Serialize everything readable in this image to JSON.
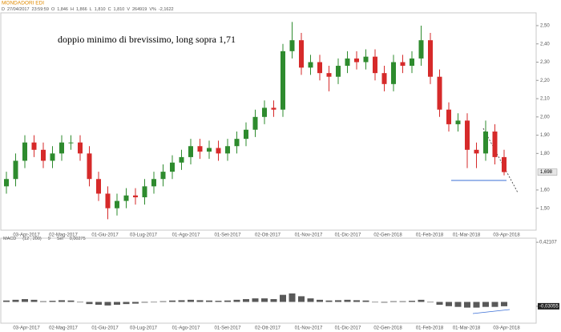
{
  "header": {
    "symbol": "MONDADORI EDI",
    "info": [
      "D",
      "27/04/2017",
      "23:59:59",
      "O",
      "1,846",
      "H",
      "1,866",
      "L",
      "1,810",
      "C",
      "1,810",
      "V",
      "264919",
      "V%",
      "-2,1622"
    ]
  },
  "chart_data": [
    {
      "type": "candlestick",
      "annotation": "doppio minimo di brevissimo, long sopra 1,71",
      "x_labels": [
        "03-Apr-2017",
        "02-Mag-2017",
        "01-Giu-2017",
        "03-Lug-2017",
        "01-Ago-2017",
        "01-Set-2017",
        "02-Ott-2017",
        "01-Nov-2017",
        "01-Dic-2017",
        "02-Gen-2018",
        "01-Feb-2018",
        "01-Mar-2018",
        "03-Apr-2018"
      ],
      "open": [
        1.62,
        1.66,
        1.76,
        1.86,
        1.82,
        1.76,
        1.8,
        1.86,
        1.86,
        1.8,
        1.66,
        1.58,
        1.5,
        1.54,
        1.57,
        1.56,
        1.62,
        1.66,
        1.7,
        1.75,
        1.78,
        1.84,
        1.81,
        1.83,
        1.8,
        1.84,
        1.88,
        1.93,
        2.0,
        2.05,
        2.04,
        2.36,
        2.42,
        2.27,
        2.3,
        2.24,
        2.22,
        2.28,
        2.32,
        2.3,
        2.33,
        2.24,
        2.18,
        2.3,
        2.28,
        2.32,
        2.42,
        2.22,
        2.04,
        1.96,
        1.98,
        1.82,
        1.8,
        1.92,
        1.78
      ],
      "high": [
        1.7,
        1.8,
        1.9,
        1.9,
        1.86,
        1.84,
        1.9,
        1.9,
        1.9,
        1.84,
        1.7,
        1.62,
        1.58,
        1.61,
        1.61,
        1.66,
        1.7,
        1.74,
        1.79,
        1.82,
        1.88,
        1.88,
        1.87,
        1.87,
        1.88,
        1.92,
        1.97,
        2.04,
        2.09,
        2.09,
        2.4,
        2.52,
        2.46,
        2.34,
        2.34,
        2.28,
        2.32,
        2.36,
        2.36,
        2.37,
        2.37,
        2.28,
        2.34,
        2.34,
        2.36,
        2.5,
        2.46,
        2.26,
        2.08,
        2.02,
        2.02,
        1.86,
        1.98,
        1.96,
        1.82
      ],
      "low": [
        1.58,
        1.62,
        1.72,
        1.78,
        1.72,
        1.72,
        1.76,
        1.82,
        1.76,
        1.62,
        1.54,
        1.44,
        1.46,
        1.5,
        1.52,
        1.52,
        1.58,
        1.62,
        1.66,
        1.71,
        1.74,
        1.77,
        1.77,
        1.76,
        1.76,
        1.8,
        1.84,
        1.89,
        1.96,
        2.0,
        2.0,
        2.32,
        2.23,
        2.23,
        2.2,
        2.14,
        2.18,
        2.24,
        2.26,
        2.26,
        2.2,
        2.14,
        2.14,
        2.24,
        2.24,
        2.28,
        2.18,
        2.0,
        1.92,
        1.92,
        1.72,
        1.72,
        1.76,
        1.74,
        1.68
      ],
      "close": [
        1.66,
        1.76,
        1.86,
        1.82,
        1.76,
        1.8,
        1.86,
        1.86,
        1.8,
        1.66,
        1.58,
        1.5,
        1.54,
        1.57,
        1.56,
        1.62,
        1.66,
        1.7,
        1.75,
        1.78,
        1.84,
        1.81,
        1.83,
        1.8,
        1.84,
        1.88,
        1.93,
        2.0,
        2.05,
        2.04,
        2.36,
        2.42,
        2.27,
        2.3,
        2.24,
        2.22,
        2.28,
        2.32,
        2.3,
        2.33,
        2.24,
        2.18,
        2.3,
        2.28,
        2.32,
        2.42,
        2.22,
        2.04,
        1.96,
        1.98,
        1.82,
        1.8,
        1.92,
        1.78,
        1.698
      ],
      "up_color": "#2e8b2e",
      "down_color": "#d62a2a",
      "last_price": {
        "value": 1.698,
        "label": "1,698"
      },
      "ylim": [
        1.38,
        2.57
      ],
      "yticks": [
        {
          "value": 2.5,
          "label": "2,50"
        },
        {
          "value": 2.4,
          "label": "2,40"
        },
        {
          "value": 2.3,
          "label": "2,30"
        },
        {
          "value": 2.2,
          "label": "2,20"
        },
        {
          "value": 2.1,
          "label": "2,10"
        },
        {
          "value": 2.0,
          "label": "2,00"
        },
        {
          "value": 1.9,
          "label": "1,90"
        },
        {
          "value": 1.8,
          "label": "1,80"
        },
        {
          "value": 1.6,
          "label": "1,60"
        },
        {
          "value": 1.5,
          "label": "1,50"
        }
      ]
    },
    {
      "type": "bar",
      "title": "MACD",
      "params": "(12 , 200)",
      "signal": "9",
      "sel_label": "Sel",
      "sel": "0,00275",
      "color": "#222222",
      "values": [
        0.01,
        0.015,
        0.02,
        0.015,
        0.005,
        0.008,
        0.012,
        0.01,
        0.0,
        -0.015,
        -0.02,
        -0.025,
        -0.02,
        -0.015,
        -0.012,
        -0.005,
        0.0,
        0.005,
        0.01,
        0.012,
        0.015,
        0.012,
        0.01,
        0.008,
        0.01,
        0.015,
        0.02,
        0.025,
        0.025,
        0.02,
        0.05,
        0.06,
        0.04,
        0.025,
        0.015,
        0.01,
        0.012,
        0.015,
        0.012,
        0.01,
        0.0,
        -0.005,
        0.005,
        0.005,
        0.008,
        0.015,
        0.0,
        -0.02,
        -0.03,
        -0.035,
        -0.04,
        -0.04,
        -0.035,
        -0.035,
        -0.03055
      ],
      "ylim": [
        -0.15,
        0.45
      ],
      "yticks": [
        {
          "value": 0.42107,
          "label": "0,42107"
        },
        {
          "value": -0.03055,
          "label": "-0,03055"
        }
      ]
    }
  ]
}
